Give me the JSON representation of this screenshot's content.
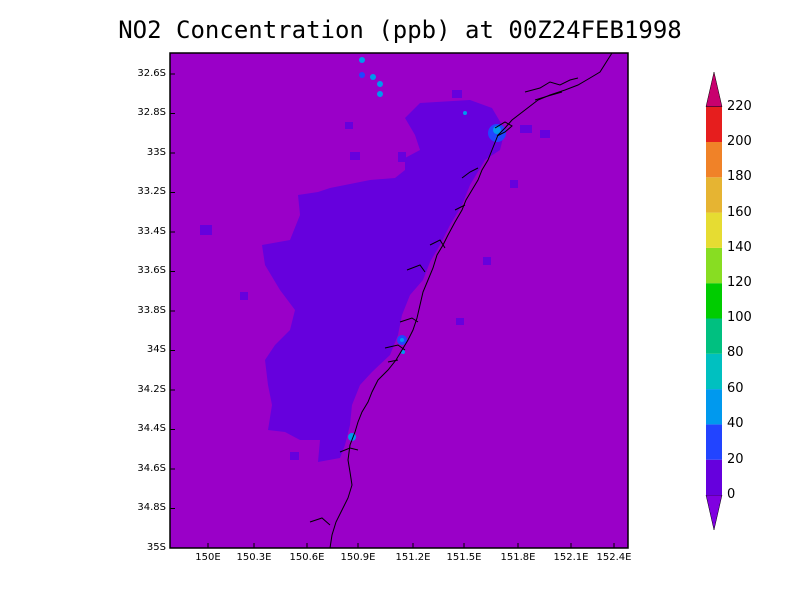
{
  "title": "NO2 Concentration (ppb) at 00Z24FEB1998",
  "map": {
    "y_ticks": [
      "32.6S",
      "32.8S",
      "33S",
      "33.2S",
      "33.4S",
      "33.6S",
      "33.8S",
      "34S",
      "34.2S",
      "34.4S",
      "34.6S",
      "34.8S",
      "35S"
    ],
    "x_ticks": [
      "150E",
      "150.3E",
      "150.6E",
      "150.9E",
      "151.2E",
      "151.5E",
      "151.8E",
      "152.1E",
      "152.4E"
    ],
    "background_color": "#9a00c8",
    "plume_color": "#6600dd"
  },
  "colorbar": {
    "labels": [
      "0",
      "20",
      "40",
      "60",
      "80",
      "100",
      "120",
      "140",
      "160",
      "180",
      "200",
      "220"
    ],
    "colors": [
      "#8000e0",
      "#6600dd",
      "#2244ff",
      "#0099ee",
      "#00c0c0",
      "#00c080",
      "#00cc00",
      "#88dd22",
      "#e6dc32",
      "#e6b432",
      "#f08228",
      "#e61e1e",
      "#c8006e"
    ]
  }
}
